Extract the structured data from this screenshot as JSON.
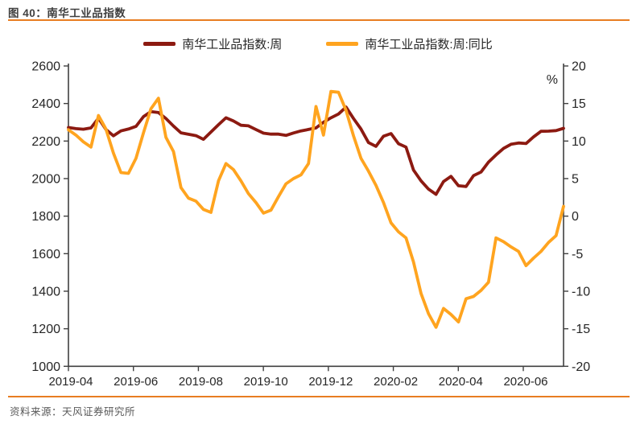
{
  "header": {
    "title": "图 40：南华工业品指数"
  },
  "footer": {
    "source": "资料来源：天风证券研究所"
  },
  "chart_data": {
    "type": "line",
    "title": "南华工业品指数",
    "unit_label": "%",
    "legend_position": "top-center",
    "grid": false,
    "x_tick_labels": [
      "2019-04",
      "2019-06",
      "2019-08",
      "2019-10",
      "2019-12",
      "2020-02",
      "2020-04",
      "2020-06"
    ],
    "left_axis": {
      "min": 1000,
      "max": 2600,
      "ticks": [
        2600,
        2400,
        2200,
        2000,
        1800,
        1600,
        1400,
        1200,
        1000
      ]
    },
    "right_axis": {
      "min": -20,
      "max": 20,
      "ticks": [
        20,
        15,
        10,
        5,
        0,
        -5,
        -10,
        -15,
        -20
      ],
      "unit": "%"
    },
    "colors": {
      "series1": "#8c1a11",
      "series2": "#ffa41f",
      "rule": "#e87d21",
      "axis": "#404040"
    },
    "dates": [
      "2019-04-05",
      "2019-04-12",
      "2019-04-19",
      "2019-04-26",
      "2019-05-03",
      "2019-05-10",
      "2019-05-17",
      "2019-05-24",
      "2019-05-31",
      "2019-06-07",
      "2019-06-14",
      "2019-06-21",
      "2019-06-28",
      "2019-07-05",
      "2019-07-12",
      "2019-07-19",
      "2019-07-26",
      "2019-08-02",
      "2019-08-09",
      "2019-08-16",
      "2019-08-23",
      "2019-08-30",
      "2019-09-06",
      "2019-09-13",
      "2019-09-20",
      "2019-09-27",
      "2019-10-04",
      "2019-10-11",
      "2019-10-18",
      "2019-10-25",
      "2019-11-01",
      "2019-11-08",
      "2019-11-15",
      "2019-11-22",
      "2019-11-29",
      "2019-12-06",
      "2019-12-13",
      "2019-12-20",
      "2019-12-27",
      "2020-01-03",
      "2020-01-10",
      "2020-01-17",
      "2020-01-24",
      "2020-01-31",
      "2020-02-07",
      "2020-02-14",
      "2020-02-21",
      "2020-02-28",
      "2020-03-06",
      "2020-03-13",
      "2020-03-20",
      "2020-03-27",
      "2020-04-03",
      "2020-04-10",
      "2020-04-17",
      "2020-04-24",
      "2020-05-01",
      "2020-05-08",
      "2020-05-15",
      "2020-05-22",
      "2020-05-29",
      "2020-06-05",
      "2020-06-12",
      "2020-06-19",
      "2020-06-26",
      "2020-07-03",
      "2020-07-10"
    ],
    "series": [
      {
        "name": "南华工业品指数:周",
        "axis": "left",
        "color": "#8c1a11",
        "values": [
          2272,
          2266,
          2263,
          2270,
          2322,
          2262,
          2228,
          2254,
          2264,
          2278,
          2330,
          2357,
          2352,
          2320,
          2280,
          2244,
          2236,
          2229,
          2209,
          2248,
          2287,
          2324,
          2307,
          2284,
          2281,
          2261,
          2242,
          2237,
          2237,
          2230,
          2243,
          2254,
          2262,
          2270,
          2300,
          2324,
          2344,
          2381,
          2320,
          2264,
          2192,
          2172,
          2226,
          2240,
          2186,
          2168,
          2046,
          1988,
          1944,
          1916,
          1984,
          2012,
          1962,
          1958,
          2016,
          2035,
          2088,
          2126,
          2161,
          2183,
          2190,
          2187,
          2222,
          2252,
          2253,
          2256,
          2268
        ]
      },
      {
        "name": "南华工业品指数:周:同比",
        "axis": "right",
        "color": "#ffa41f",
        "values": [
          11.5,
          10.8,
          9.9,
          9.2,
          13.4,
          11.6,
          8.4,
          5.8,
          5.7,
          7.7,
          11.1,
          14.3,
          15.7,
          10.5,
          8.6,
          3.8,
          2.4,
          2.0,
          0.9,
          0.5,
          4.7,
          7.0,
          6.2,
          4.7,
          3.0,
          1.8,
          0.4,
          0.8,
          2.6,
          4.3,
          5.0,
          5.5,
          7.0,
          14.6,
          10.8,
          16.6,
          16.5,
          14.1,
          10.7,
          7.7,
          6.0,
          4.1,
          1.8,
          -0.9,
          -2.1,
          -2.9,
          -6.1,
          -10.3,
          -13.0,
          -14.8,
          -12.3,
          -13.1,
          -14.1,
          -11.0,
          -10.7,
          -9.9,
          -8.8,
          -2.9,
          -3.4,
          -4.1,
          -4.7,
          -6.6,
          -5.6,
          -4.7,
          -3.5,
          -2.6,
          1.3
        ]
      }
    ]
  }
}
